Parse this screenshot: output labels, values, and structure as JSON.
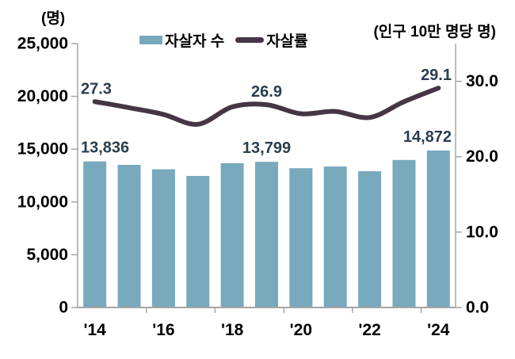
{
  "chart_data": {
    "type": "combo",
    "categories": [
      "'14",
      "'15",
      "'16",
      "'17",
      "'18",
      "'19",
      "'20",
      "'21",
      "'22",
      "'23",
      "'24"
    ],
    "series": [
      {
        "name": "자살자 수",
        "type": "bar",
        "axis": "left",
        "color": "#78A9BC",
        "values": [
          13836,
          13513,
          13092,
          12463,
          13670,
          13799,
          13195,
          13352,
          12906,
          13978,
          14872
        ],
        "data_labels": {
          "0": "13,836",
          "5": "13,799",
          "10": "14,872"
        }
      },
      {
        "name": "자살률",
        "type": "line",
        "axis": "right",
        "color": "#463545",
        "values": [
          27.3,
          26.5,
          25.6,
          24.3,
          26.6,
          26.9,
          25.7,
          26.0,
          25.2,
          27.3,
          29.1
        ],
        "data_labels": {
          "0": "27.3",
          "5": "26.9",
          "10": "29.1"
        }
      }
    ],
    "left_axis": {
      "title": "(명)",
      "min": 0,
      "max": 25000,
      "tick_step": 5000,
      "tick_labels": [
        "0",
        "5,000",
        "10,000",
        "15,000",
        "20,000",
        "25,000"
      ]
    },
    "right_axis": {
      "title": "(인구 10만 명당 명)",
      "min": 0,
      "max": 35,
      "tick_values": [
        0,
        10,
        20,
        30
      ],
      "tick_labels": [
        "0.0",
        "10.0",
        "20.0",
        "30.0"
      ]
    },
    "x_axis": {
      "tick_labels": [
        "'14",
        "'16",
        "'18",
        "'20",
        "'22",
        "'24"
      ],
      "label_every": 2
    },
    "grid": false,
    "legend_position": "top",
    "colors": {
      "bar": "#78A9BC",
      "line": "#463545",
      "data_label": "#2B3D4E",
      "axis_line": "#A6A6A6",
      "tick_label": "#000000"
    }
  }
}
